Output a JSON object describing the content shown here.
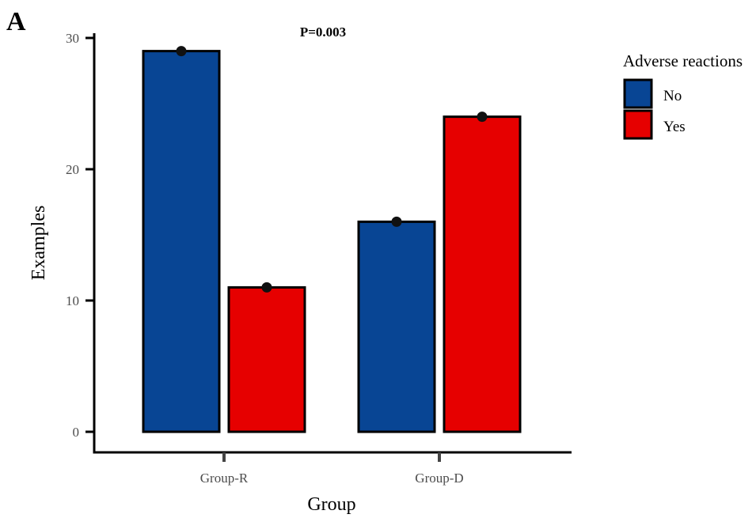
{
  "panel_label": "A",
  "annotation": "P=0.003",
  "chart_data": {
    "type": "bar",
    "categories": [
      "Group-R",
      "Group-D"
    ],
    "series": [
      {
        "name": "No",
        "color": "#084594",
        "values": [
          29,
          16
        ]
      },
      {
        "name": "Yes",
        "color": "#e60000",
        "values": [
          11,
          24
        ]
      }
    ],
    "xlabel": "Group",
    "ylabel": "Examples",
    "ylim": [
      0,
      30
    ],
    "yticks": [
      0,
      10,
      20,
      30
    ],
    "legend": {
      "title": "Adverse reactions",
      "position": "right"
    },
    "grid": false
  }
}
